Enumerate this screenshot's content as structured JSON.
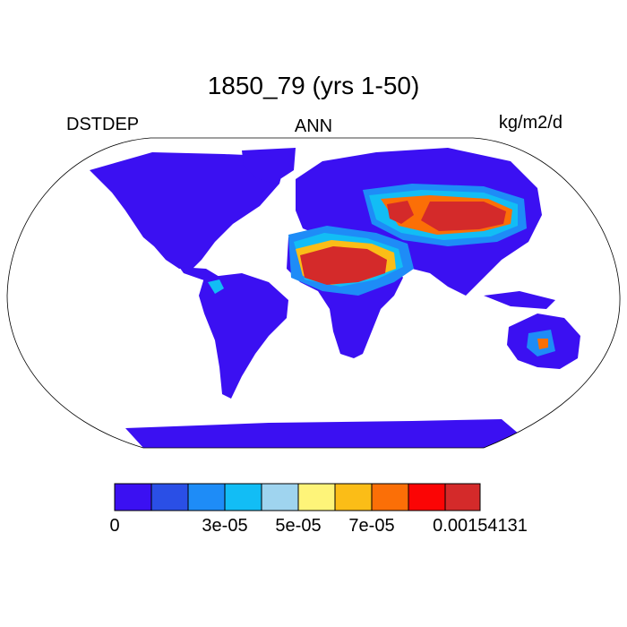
{
  "title": "1850_79 (yrs 1-50)",
  "left_string": "DSTDEP",
  "center_string": "ANN",
  "right_string": "kg/m2/d",
  "colorbar": {
    "colors": [
      "#3b10f2",
      "#2a4fe6",
      "#1e8cf7",
      "#12bdf5",
      "#9fd4ef",
      "#fef479",
      "#fbbd17",
      "#fb6f07",
      "#fb0505",
      "#d42a2a"
    ],
    "tick_labels": [
      "0",
      "3e-05",
      "5e-05",
      "7e-05",
      "0.00154131"
    ]
  },
  "legend": {
    "ocean": "#ffffff",
    "land_low": "#3b10f2"
  }
}
